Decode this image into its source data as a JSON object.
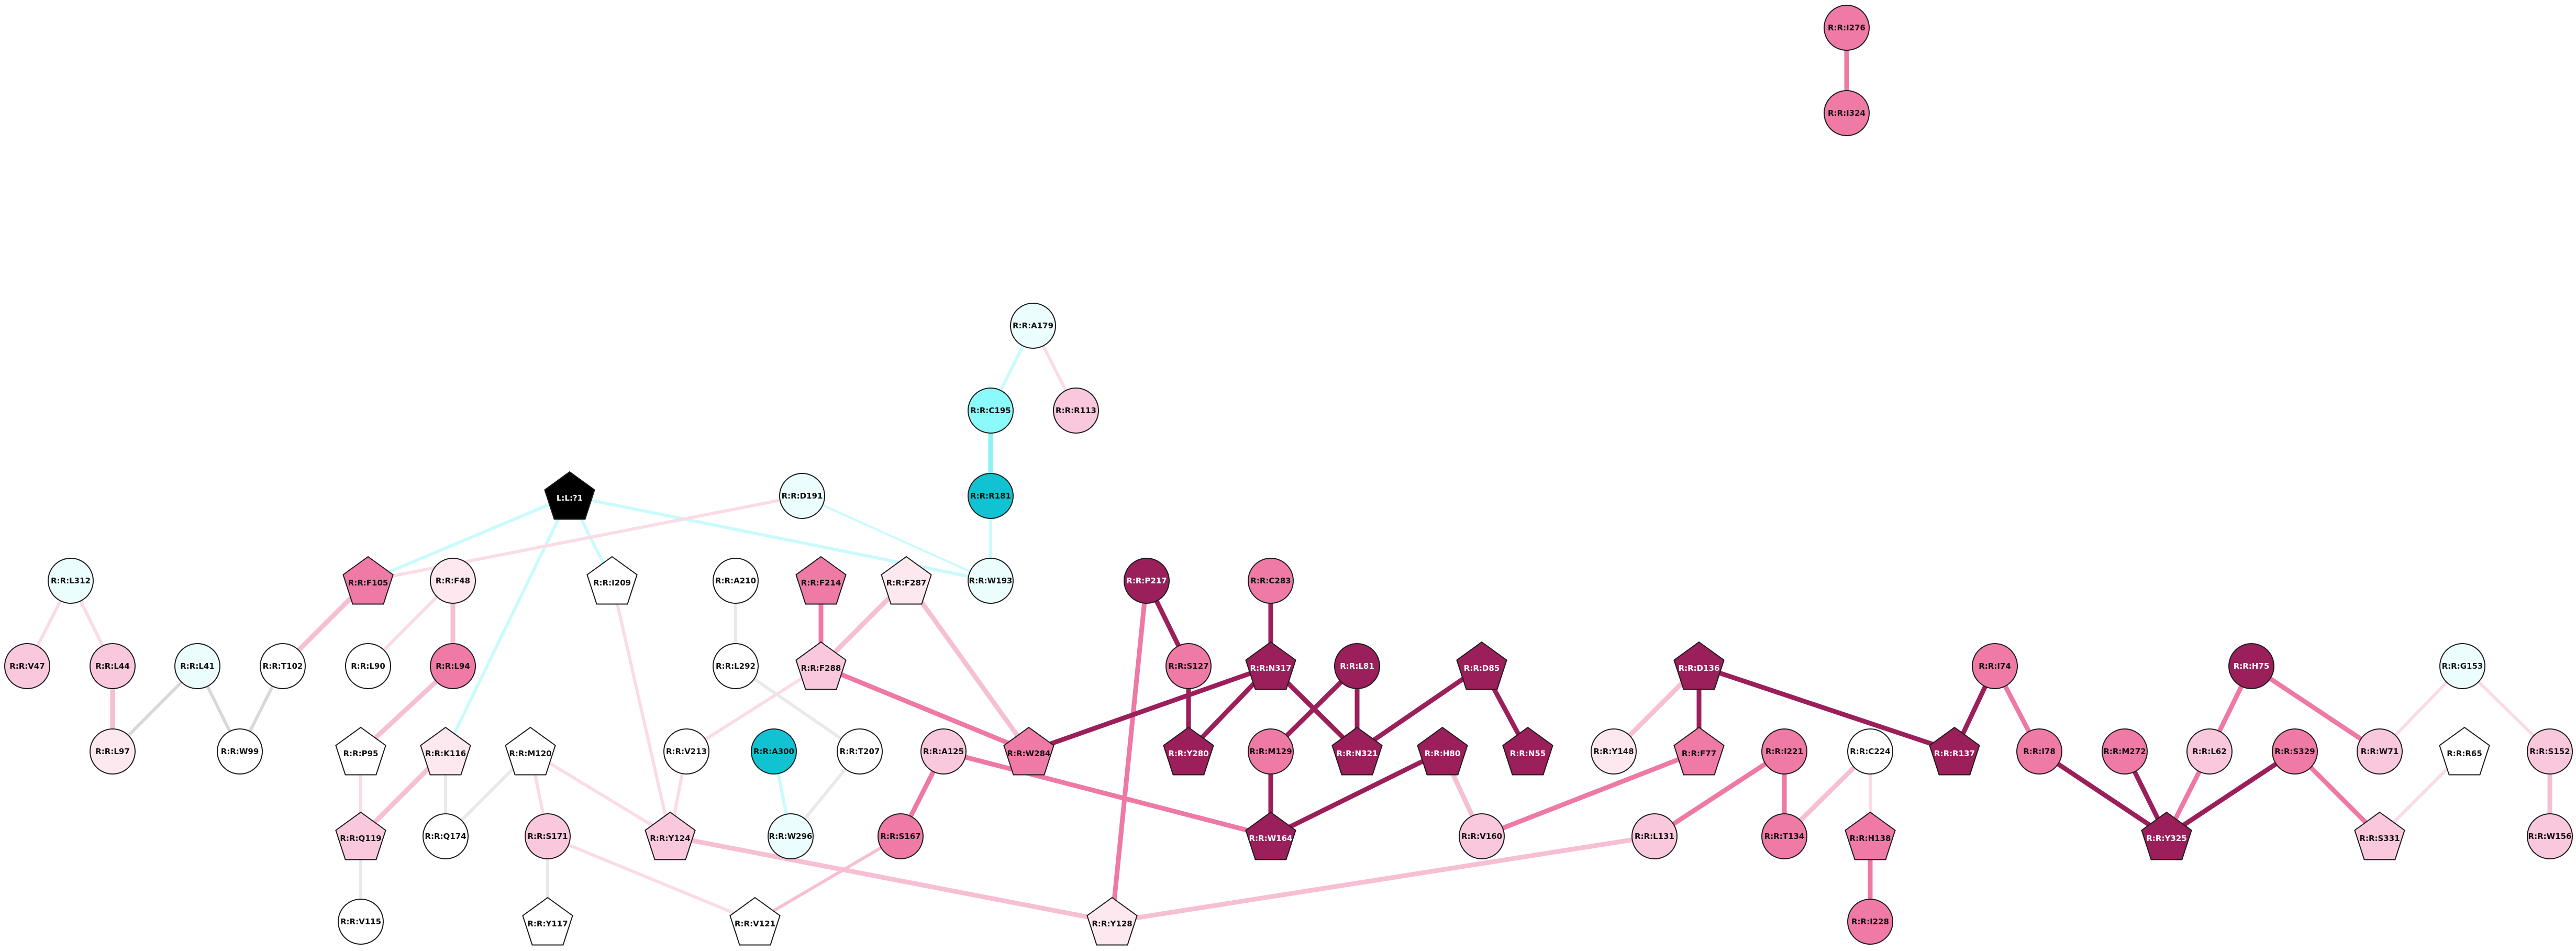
{
  "colors": {
    "white": "#ffffff",
    "azure": "#ebfdfd",
    "cyan": "#8cf9fb",
    "teal": "#11c3d2",
    "blush": "#fde8ef",
    "pink": "#fac8dc",
    "rose": "#f07aa6",
    "magenta": "#9b1f5a",
    "black": "#000000",
    "edge_grey": "#d8d8d8",
    "edge_lightgrey": "#e9e9e9",
    "edge_blush": "#fadbe6",
    "edge_pink": "#f6bfd3",
    "edge_rose": "#ee79a5",
    "edge_magenta": "#9b1f5a",
    "edge_cyan": "#c9fbfd",
    "edge_cyan_mid": "#8cf3f6"
  },
  "nodes": [
    {
      "id": "R:R:I276",
      "shape": "circle",
      "fill": "rose",
      "text": "dark"
    },
    {
      "id": "R:R:I324",
      "shape": "circle",
      "fill": "rose",
      "text": "dark"
    },
    {
      "id": "R:R:A179",
      "shape": "circle",
      "fill": "azure",
      "text": "dark"
    },
    {
      "id": "R:R:C195",
      "shape": "circle",
      "fill": "cyan",
      "text": "dark"
    },
    {
      "id": "R:R:R113",
      "shape": "circle",
      "fill": "pink",
      "text": "dark"
    },
    {
      "id": "R:R:R181",
      "shape": "circle",
      "fill": "teal",
      "text": "dark"
    },
    {
      "id": "L:L:?1",
      "shape": "pentagon",
      "fill": "black",
      "text": "light"
    },
    {
      "id": "R:R:D191",
      "shape": "circle",
      "fill": "azure",
      "text": "dark"
    },
    {
      "id": "R:R:W193",
      "shape": "circle",
      "fill": "azure",
      "text": "dark"
    },
    {
      "id": "R:R:L312",
      "shape": "circle",
      "fill": "azure",
      "text": "dark"
    },
    {
      "id": "R:R:F105",
      "shape": "pentagon",
      "fill": "rose",
      "text": "dark"
    },
    {
      "id": "R:R:F48",
      "shape": "circle",
      "fill": "blush",
      "text": "dark"
    },
    {
      "id": "R:R:I209",
      "shape": "pentagon",
      "fill": "white",
      "text": "dark"
    },
    {
      "id": "R:R:A210",
      "shape": "circle",
      "fill": "white",
      "text": "dark"
    },
    {
      "id": "R:R:F214",
      "shape": "pentagon",
      "fill": "rose",
      "text": "dark"
    },
    {
      "id": "R:R:F287",
      "shape": "pentagon",
      "fill": "blush",
      "text": "dark"
    },
    {
      "id": "R:R:P217",
      "shape": "circle",
      "fill": "magenta",
      "text": "light"
    },
    {
      "id": "R:R:C283",
      "shape": "circle",
      "fill": "rose",
      "text": "dark"
    },
    {
      "id": "R:R:V47",
      "shape": "circle",
      "fill": "pink",
      "text": "dark"
    },
    {
      "id": "R:R:L44",
      "shape": "circle",
      "fill": "pink",
      "text": "dark"
    },
    {
      "id": "R:R:L41",
      "shape": "circle",
      "fill": "azure",
      "text": "dark"
    },
    {
      "id": "R:R:T102",
      "shape": "circle",
      "fill": "white",
      "text": "dark"
    },
    {
      "id": "R:R:L90",
      "shape": "circle",
      "fill": "white",
      "text": "dark"
    },
    {
      "id": "R:R:L94",
      "shape": "circle",
      "fill": "rose",
      "text": "dark"
    },
    {
      "id": "R:R:L292",
      "shape": "circle",
      "fill": "white",
      "text": "dark"
    },
    {
      "id": "R:R:F288",
      "shape": "pentagon",
      "fill": "pink",
      "text": "dark"
    },
    {
      "id": "R:R:S127",
      "shape": "circle",
      "fill": "rose",
      "text": "dark"
    },
    {
      "id": "R:R:N317",
      "shape": "pentagon",
      "fill": "magenta",
      "text": "light"
    },
    {
      "id": "R:R:L81",
      "shape": "circle",
      "fill": "magenta",
      "text": "light"
    },
    {
      "id": "R:R:D85",
      "shape": "pentagon",
      "fill": "magenta",
      "text": "light"
    },
    {
      "id": "R:R:D136",
      "shape": "pentagon",
      "fill": "magenta",
      "text": "light"
    },
    {
      "id": "R:R:I74",
      "shape": "circle",
      "fill": "rose",
      "text": "dark"
    },
    {
      "id": "R:R:H75",
      "shape": "circle",
      "fill": "magenta",
      "text": "light"
    },
    {
      "id": "R:R:G153",
      "shape": "circle",
      "fill": "azure",
      "text": "dark"
    },
    {
      "id": "R:R:L97",
      "shape": "circle",
      "fill": "blush",
      "text": "dark"
    },
    {
      "id": "R:R:W99",
      "shape": "circle",
      "fill": "white",
      "text": "dark"
    },
    {
      "id": "R:R:P95",
      "shape": "pentagon",
      "fill": "white",
      "text": "dark"
    },
    {
      "id": "R:R:K116",
      "shape": "pentagon",
      "fill": "blush",
      "text": "dark"
    },
    {
      "id": "R:R:M120",
      "shape": "pentagon",
      "fill": "white",
      "text": "dark"
    },
    {
      "id": "R:R:V213",
      "shape": "circle",
      "fill": "white",
      "text": "dark"
    },
    {
      "id": "R:R:A300",
      "shape": "circle",
      "fill": "teal",
      "text": "dark"
    },
    {
      "id": "R:R:T207",
      "shape": "circle",
      "fill": "white",
      "text": "dark"
    },
    {
      "id": "R:R:A125",
      "shape": "circle",
      "fill": "pink",
      "text": "dark"
    },
    {
      "id": "R:R:W284",
      "shape": "pentagon",
      "fill": "rose",
      "text": "dark"
    },
    {
      "id": "R:R:Y280",
      "shape": "pentagon",
      "fill": "magenta",
      "text": "light"
    },
    {
      "id": "R:R:M129",
      "shape": "circle",
      "fill": "rose",
      "text": "dark"
    },
    {
      "id": "R:R:N321",
      "shape": "pentagon",
      "fill": "magenta",
      "text": "light"
    },
    {
      "id": "R:R:H80",
      "shape": "pentagon",
      "fill": "magenta",
      "text": "light"
    },
    {
      "id": "R:R:N55",
      "shape": "pentagon",
      "fill": "magenta",
      "text": "light"
    },
    {
      "id": "R:R:Y148",
      "shape": "circle",
      "fill": "blush",
      "text": "dark"
    },
    {
      "id": "R:R:F77",
      "shape": "pentagon",
      "fill": "rose",
      "text": "dark"
    },
    {
      "id": "R:R:I221",
      "shape": "circle",
      "fill": "rose",
      "text": "dark"
    },
    {
      "id": "R:R:C224",
      "shape": "circle",
      "fill": "white",
      "text": "dark"
    },
    {
      "id": "R:R:R137",
      "shape": "pentagon",
      "fill": "magenta",
      "text": "light"
    },
    {
      "id": "R:R:I78",
      "shape": "circle",
      "fill": "rose",
      "text": "dark"
    },
    {
      "id": "R:R:M272",
      "shape": "circle",
      "fill": "rose",
      "text": "dark"
    },
    {
      "id": "R:R:L62",
      "shape": "circle",
      "fill": "pink",
      "text": "dark"
    },
    {
      "id": "R:R:S329",
      "shape": "circle",
      "fill": "rose",
      "text": "dark"
    },
    {
      "id": "R:R:W71",
      "shape": "circle",
      "fill": "pink",
      "text": "dark"
    },
    {
      "id": "R:R:R65",
      "shape": "pentagon",
      "fill": "white",
      "text": "dark"
    },
    {
      "id": "R:R:S152",
      "shape": "circle",
      "fill": "pink",
      "text": "dark"
    },
    {
      "id": "R:R:Q119",
      "shape": "pentagon",
      "fill": "pink",
      "text": "dark"
    },
    {
      "id": "R:R:Q174",
      "shape": "circle",
      "fill": "white",
      "text": "dark"
    },
    {
      "id": "R:R:S171",
      "shape": "circle",
      "fill": "pink",
      "text": "dark"
    },
    {
      "id": "R:R:Y124",
      "shape": "pentagon",
      "fill": "pink",
      "text": "dark"
    },
    {
      "id": "R:R:W296",
      "shape": "circle",
      "fill": "azure",
      "text": "dark"
    },
    {
      "id": "R:R:S167",
      "shape": "circle",
      "fill": "rose",
      "text": "dark"
    },
    {
      "id": "R:R:W164",
      "shape": "pentagon",
      "fill": "magenta",
      "text": "light"
    },
    {
      "id": "R:R:V160",
      "shape": "circle",
      "fill": "pink",
      "text": "dark"
    },
    {
      "id": "R:R:L131",
      "shape": "circle",
      "fill": "pink",
      "text": "dark"
    },
    {
      "id": "R:R:T134",
      "shape": "circle",
      "fill": "rose",
      "text": "dark"
    },
    {
      "id": "R:R:H138",
      "shape": "pentagon",
      "fill": "rose",
      "text": "dark"
    },
    {
      "id": "R:R:Y325",
      "shape": "pentagon",
      "fill": "magenta",
      "text": "light"
    },
    {
      "id": "R:R:S331",
      "shape": "pentagon",
      "fill": "pink",
      "text": "dark"
    },
    {
      "id": "R:R:W156",
      "shape": "circle",
      "fill": "pink",
      "text": "dark"
    },
    {
      "id": "R:R:V115",
      "shape": "circle",
      "fill": "white",
      "text": "dark"
    },
    {
      "id": "R:R:Y117",
      "shape": "pentagon",
      "fill": "white",
      "text": "dark"
    },
    {
      "id": "R:R:V121",
      "shape": "pentagon",
      "fill": "white",
      "text": "dark"
    },
    {
      "id": "R:R:Y128",
      "shape": "pentagon",
      "fill": "blush",
      "text": "dark"
    },
    {
      "id": "R:R:I228",
      "shape": "circle",
      "fill": "rose",
      "text": "dark"
    }
  ],
  "edges": [
    {
      "source": "R:R:I276",
      "target": "R:R:I324",
      "color": "edge_rose",
      "weight": "heavy"
    },
    {
      "source": "R:R:A179",
      "target": "R:R:C195",
      "color": "edge_cyan",
      "weight": "medium"
    },
    {
      "source": "R:R:A179",
      "target": "R:R:R113",
      "color": "edge_blush",
      "weight": "medium"
    },
    {
      "source": "R:R:C195",
      "target": "R:R:R181",
      "color": "edge_cyan_mid",
      "weight": "heavy"
    },
    {
      "source": "R:R:R181",
      "target": "R:R:W193",
      "color": "edge_cyan",
      "weight": "medium"
    },
    {
      "source": "R:R:D191",
      "target": "R:R:W193",
      "color": "edge_cyan",
      "weight": "light"
    },
    {
      "source": "L:L:?1",
      "target": "R:R:W193",
      "color": "edge_cyan",
      "weight": "medium"
    },
    {
      "source": "L:L:?1",
      "target": "R:R:F105",
      "color": "edge_cyan",
      "weight": "medium"
    },
    {
      "source": "L:L:?1",
      "target": "R:R:I209",
      "color": "edge_cyan",
      "weight": "medium"
    },
    {
      "source": "L:L:?1",
      "target": "R:R:K116",
      "color": "edge_cyan",
      "weight": "medium"
    },
    {
      "source": "R:R:D191",
      "target": "R:R:F105",
      "color": "edge_blush",
      "weight": "medium"
    },
    {
      "source": "R:R:L312",
      "target": "R:R:V47",
      "color": "edge_blush",
      "weight": "medium"
    },
    {
      "source": "R:R:L312",
      "target": "R:R:L44",
      "color": "edge_blush",
      "weight": "medium"
    },
    {
      "source": "R:R:L44",
      "target": "R:R:L97",
      "color": "edge_pink",
      "weight": "heavy"
    },
    {
      "source": "R:R:L41",
      "target": "R:R:L97",
      "color": "edge_grey",
      "weight": "medium"
    },
    {
      "source": "R:R:L41",
      "target": "R:R:W99",
      "color": "edge_grey",
      "weight": "medium"
    },
    {
      "source": "R:R:T102",
      "target": "R:R:W99",
      "color": "edge_grey",
      "weight": "medium"
    },
    {
      "source": "R:R:F105",
      "target": "R:R:T102",
      "color": "edge_pink",
      "weight": "heavy"
    },
    {
      "source": "R:R:F48",
      "target": "R:R:L90",
      "color": "edge_blush",
      "weight": "medium"
    },
    {
      "source": "R:R:F48",
      "target": "R:R:L94",
      "color": "edge_pink",
      "weight": "heavy"
    },
    {
      "source": "R:R:L94",
      "target": "R:R:P95",
      "color": "edge_pink",
      "weight": "heavy"
    },
    {
      "source": "R:R:P95",
      "target": "R:R:Q119",
      "color": "edge_blush",
      "weight": "medium"
    },
    {
      "source": "R:R:K116",
      "target": "R:R:Q119",
      "color": "edge_pink",
      "weight": "heavy"
    },
    {
      "source": "R:R:K116",
      "target": "R:R:Q174",
      "color": "edge_lightgrey",
      "weight": "medium"
    },
    {
      "source": "R:R:M120",
      "target": "R:R:Q174",
      "color": "edge_lightgrey",
      "weight": "medium"
    },
    {
      "source": "R:R:M120",
      "target": "R:R:S171",
      "color": "edge_blush",
      "weight": "medium"
    },
    {
      "source": "R:R:M120",
      "target": "R:R:Y124",
      "color": "edge_blush",
      "weight": "medium"
    },
    {
      "source": "R:R:Q119",
      "target": "R:R:V115",
      "color": "edge_lightgrey",
      "weight": "medium"
    },
    {
      "source": "R:R:S171",
      "target": "R:R:Y117",
      "color": "edge_lightgrey",
      "weight": "medium"
    },
    {
      "source": "R:R:S171",
      "target": "R:R:V121",
      "color": "edge_blush",
      "weight": "medium"
    },
    {
      "source": "R:R:I209",
      "target": "R:R:Y124",
      "color": "edge_blush",
      "weight": "medium"
    },
    {
      "source": "R:R:Y124",
      "target": "R:R:Y128",
      "color": "edge_pink",
      "weight": "heavy"
    },
    {
      "source": "R:R:V213",
      "target": "R:R:Y124",
      "color": "edge_blush",
      "weight": "medium"
    },
    {
      "source": "R:R:A210",
      "target": "R:R:L292",
      "color": "edge_lightgrey",
      "weight": "medium"
    },
    {
      "source": "R:R:F214",
      "target": "R:R:F288",
      "color": "edge_rose",
      "weight": "heavy"
    },
    {
      "source": "R:R:F287",
      "target": "R:R:F288",
      "color": "edge_pink",
      "weight": "heavy"
    },
    {
      "source": "R:R:F287",
      "target": "R:R:W284",
      "color": "edge_pink",
      "weight": "heavy"
    },
    {
      "source": "R:R:F288",
      "target": "R:R:W284",
      "color": "edge_rose",
      "weight": "heavy"
    },
    {
      "source": "R:R:F288",
      "target": "R:R:V213",
      "color": "edge_blush",
      "weight": "medium"
    },
    {
      "source": "R:R:L292",
      "target": "R:R:T207",
      "color": "edge_lightgrey",
      "weight": "medium"
    },
    {
      "source": "R:R:T207",
      "target": "R:R:W296",
      "color": "edge_lightgrey",
      "weight": "medium"
    },
    {
      "source": "R:R:A300",
      "target": "R:R:W296",
      "color": "edge_cyan",
      "weight": "medium"
    },
    {
      "source": "R:R:A125",
      "target": "R:R:S167",
      "color": "edge_rose",
      "weight": "heavy"
    },
    {
      "source": "R:R:A125",
      "target": "R:R:W164",
      "color": "edge_rose",
      "weight": "heavy"
    },
    {
      "source": "R:R:S167",
      "target": "R:R:V121",
      "color": "edge_pink",
      "weight": "medium"
    },
    {
      "source": "R:R:P217",
      "target": "R:R:S127",
      "color": "edge_magenta",
      "weight": "heavy"
    },
    {
      "source": "R:R:P217",
      "target": "R:R:Y128",
      "color": "edge_rose",
      "weight": "heavy"
    },
    {
      "source": "R:R:S127",
      "target": "R:R:Y280",
      "color": "edge_magenta",
      "weight": "heavy"
    },
    {
      "source": "R:R:C283",
      "target": "R:R:N317",
      "color": "edge_magenta",
      "weight": "heavy"
    },
    {
      "source": "R:R:N317",
      "target": "R:R:W284",
      "color": "edge_magenta",
      "weight": "heavy"
    },
    {
      "source": "R:R:N317",
      "target": "R:R:Y280",
      "color": "edge_magenta",
      "weight": "heavy"
    },
    {
      "source": "R:R:N317",
      "target": "R:R:N321",
      "color": "edge_magenta",
      "weight": "heavy"
    },
    {
      "source": "R:R:L81",
      "target": "R:R:M129",
      "color": "edge_magenta",
      "weight": "heavy"
    },
    {
      "source": "R:R:L81",
      "target": "R:R:N321",
      "color": "edge_magenta",
      "weight": "heavy"
    },
    {
      "source": "R:R:D85",
      "target": "R:R:N321",
      "color": "edge_magenta",
      "weight": "heavy"
    },
    {
      "source": "R:R:D85",
      "target": "R:R:N55",
      "color": "edge_magenta",
      "weight": "heavy"
    },
    {
      "source": "R:R:M129",
      "target": "R:R:W164",
      "color": "edge_magenta",
      "weight": "heavy"
    },
    {
      "source": "R:R:H80",
      "target": "R:R:W164",
      "color": "edge_magenta",
      "weight": "heavy"
    },
    {
      "source": "R:R:H80",
      "target": "R:R:V160",
      "color": "edge_pink",
      "weight": "heavy"
    },
    {
      "source": "R:R:D136",
      "target": "R:R:Y148",
      "color": "edge_pink",
      "weight": "heavy"
    },
    {
      "source": "R:R:D136",
      "target": "R:R:F77",
      "color": "edge_magenta",
      "weight": "heavy"
    },
    {
      "source": "R:R:D136",
      "target": "R:R:R137",
      "color": "edge_magenta",
      "weight": "heavy"
    },
    {
      "source": "R:R:F77",
      "target": "R:R:V160",
      "color": "edge_rose",
      "weight": "heavy"
    },
    {
      "source": "R:R:I221",
      "target": "R:R:L131",
      "color": "edge_rose",
      "weight": "heavy"
    },
    {
      "source": "R:R:I221",
      "target": "R:R:T134",
      "color": "edge_rose",
      "weight": "heavy"
    },
    {
      "source": "R:R:L131",
      "target": "R:R:Y128",
      "color": "edge_pink",
      "weight": "heavy"
    },
    {
      "source": "R:R:C224",
      "target": "R:R:T134",
      "color": "edge_pink",
      "weight": "heavy"
    },
    {
      "source": "R:R:C224",
      "target": "R:R:H138",
      "color": "edge_blush",
      "weight": "medium"
    },
    {
      "source": "R:R:H138",
      "target": "R:R:I228",
      "color": "edge_rose",
      "weight": "heavy"
    },
    {
      "source": "R:R:I74",
      "target": "R:R:R137",
      "color": "edge_magenta",
      "weight": "heavy"
    },
    {
      "source": "R:R:I74",
      "target": "R:R:I78",
      "color": "edge_rose",
      "weight": "heavy"
    },
    {
      "source": "R:R:I78",
      "target": "R:R:Y325",
      "color": "edge_magenta",
      "weight": "heavy"
    },
    {
      "source": "R:R:M272",
      "target": "R:R:Y325",
      "color": "edge_magenta",
      "weight": "heavy"
    },
    {
      "source": "R:R:L62",
      "target": "R:R:Y325",
      "color": "edge_rose",
      "weight": "heavy"
    },
    {
      "source": "R:R:S329",
      "target": "R:R:Y325",
      "color": "edge_magenta",
      "weight": "heavy"
    },
    {
      "source": "R:R:S329",
      "target": "R:R:S331",
      "color": "edge_rose",
      "weight": "heavy"
    },
    {
      "source": "R:R:H75",
      "target": "R:R:L62",
      "color": "edge_rose",
      "weight": "heavy"
    },
    {
      "source": "R:R:H75",
      "target": "R:R:W71",
      "color": "edge_rose",
      "weight": "heavy"
    },
    {
      "source": "R:R:G153",
      "target": "R:R:W71",
      "color": "edge_blush",
      "weight": "medium"
    },
    {
      "source": "R:R:G153",
      "target": "R:R:S152",
      "color": "edge_blush",
      "weight": "medium"
    },
    {
      "source": "R:R:R65",
      "target": "R:R:S331",
      "color": "edge_blush",
      "weight": "medium"
    },
    {
      "source": "R:R:S152",
      "target": "R:R:W156",
      "color": "edge_pink",
      "weight": "heavy"
    }
  ]
}
